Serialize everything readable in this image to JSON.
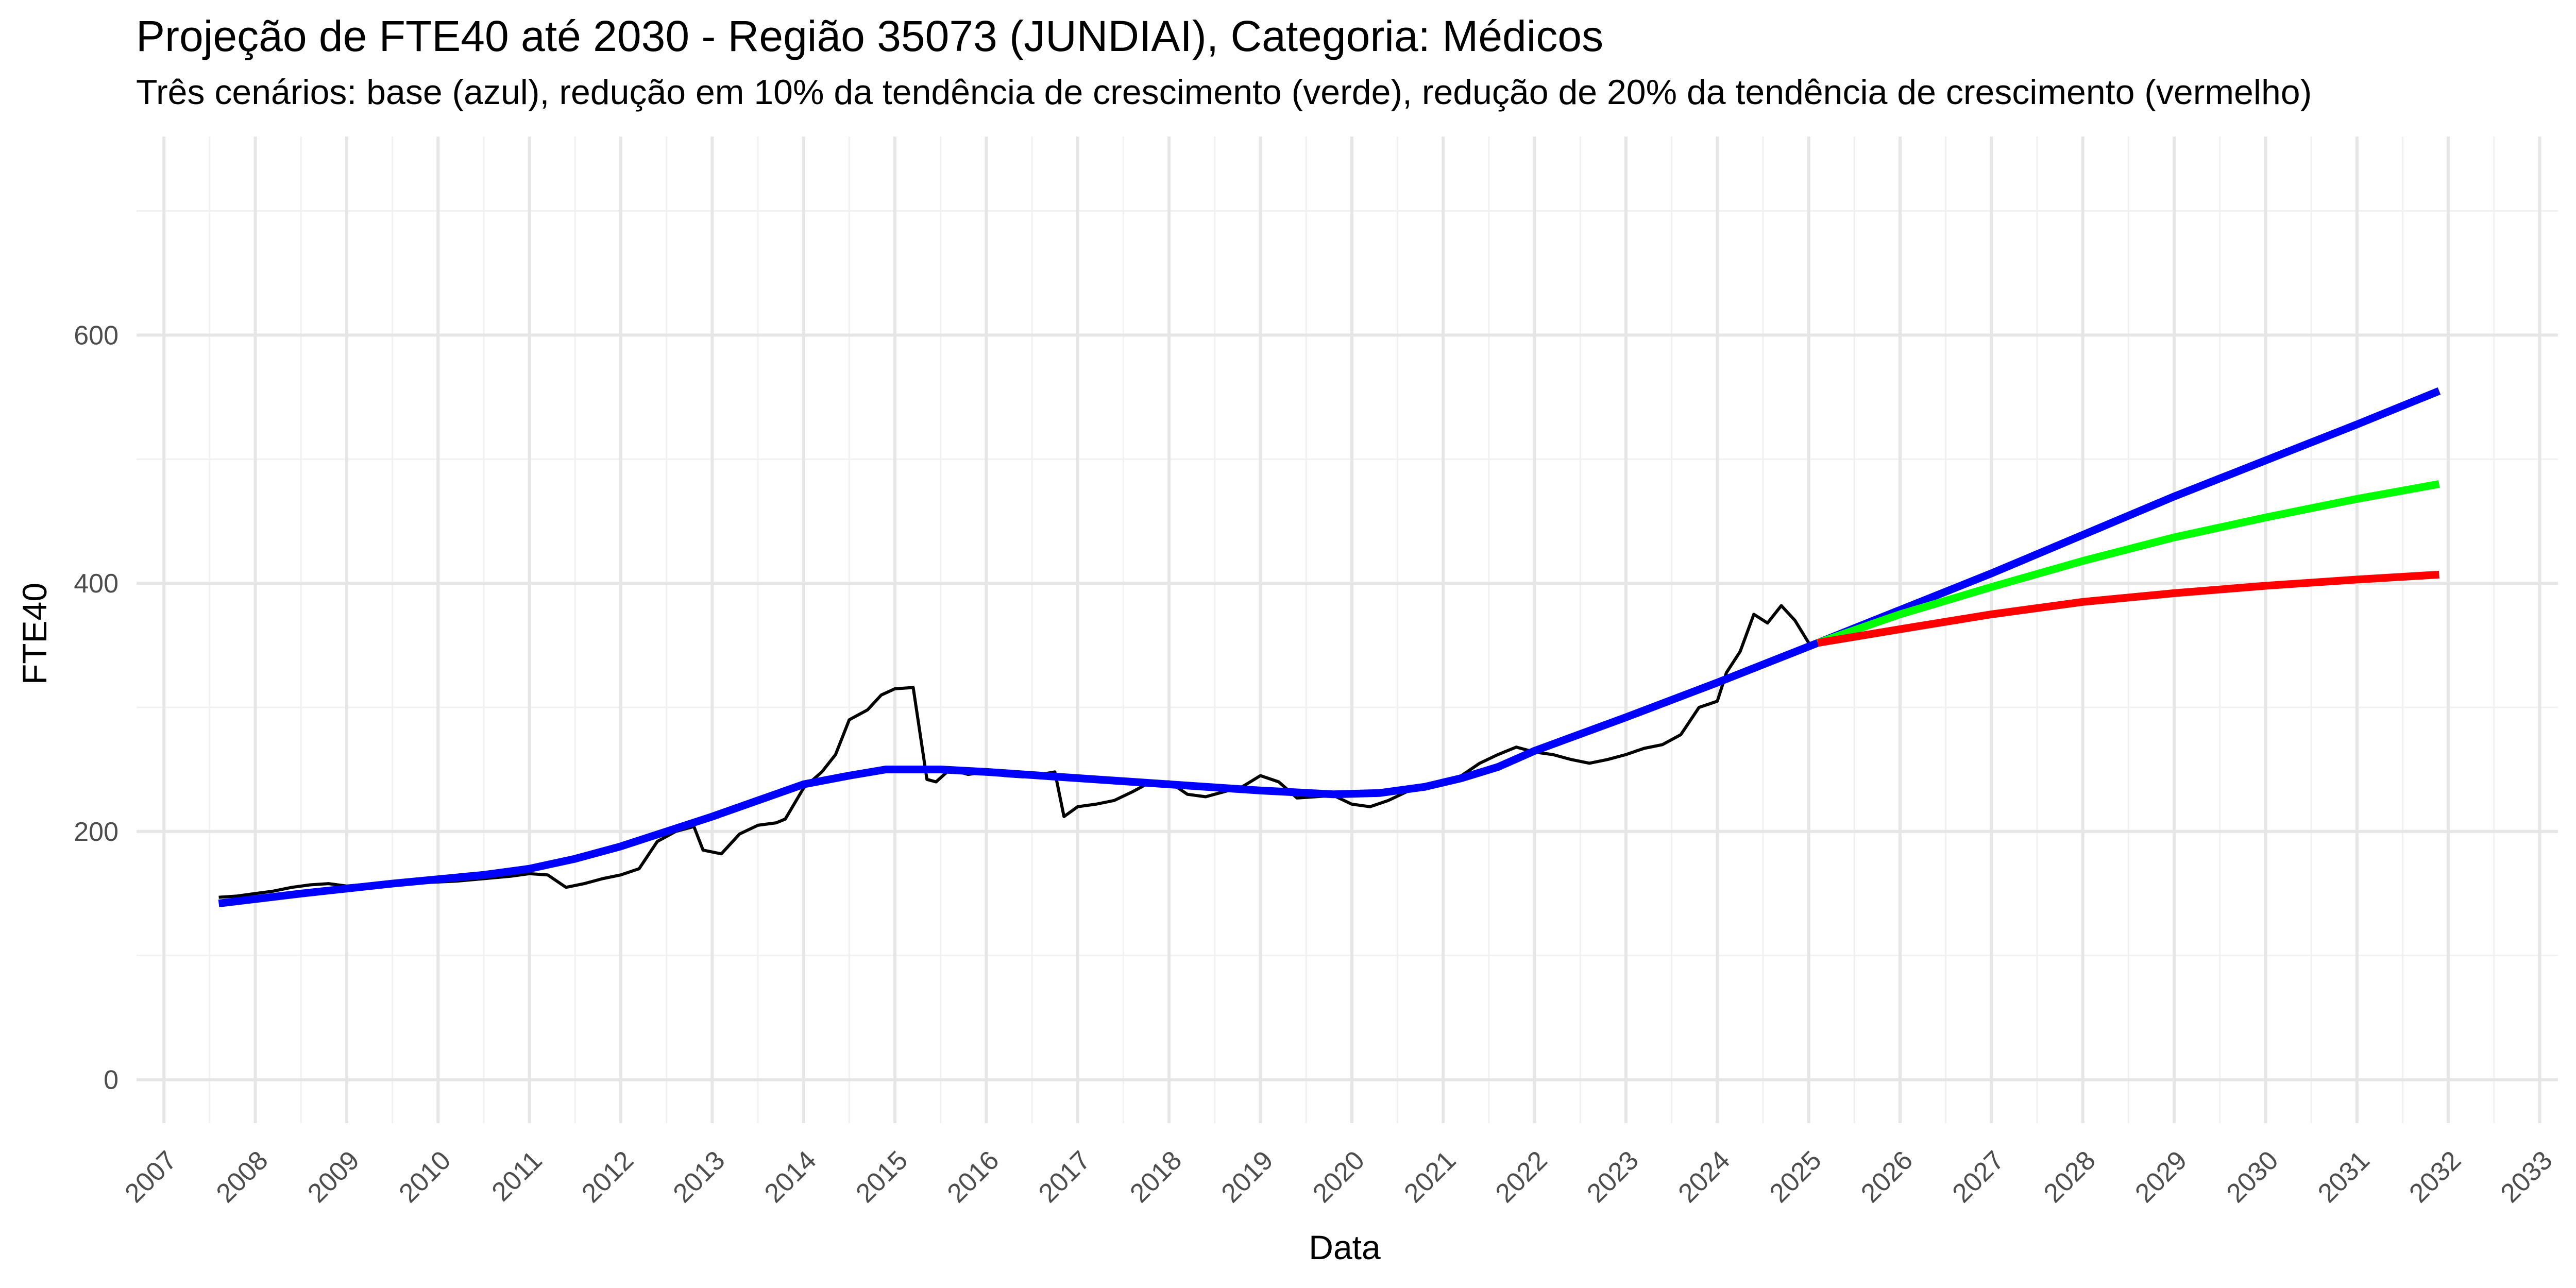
{
  "chart_data": {
    "type": "line",
    "title": "Projeção de FTE40 até 2030 - Região 35073 (JUNDIAI), Categoria: Médicos",
    "subtitle": "Três cenários: base (azul), redução em 10% da tendência de crescimento (verde), redução de 20% da tendência de crescimento (vermelho)",
    "xlabel": "Data",
    "ylabel": "FTE40",
    "xlim": [
      2006.7,
      2033.2
    ],
    "ylim": [
      -35,
      760
    ],
    "x_ticks": [
      "2007",
      "2008",
      "2009",
      "2010",
      "2011",
      "2012",
      "2013",
      "2014",
      "2015",
      "2016",
      "2017",
      "2018",
      "2019",
      "2020",
      "2021",
      "2022",
      "2023",
      "2024",
      "2025",
      "2026",
      "2027",
      "2028",
      "2029",
      "2030",
      "2031",
      "2032",
      "2033"
    ],
    "y_ticks": [
      0,
      200,
      400,
      600
    ],
    "grid": true,
    "legend": "none",
    "series": [
      {
        "color": "#000000",
        "width": 6,
        "x": [
          2007.6,
          2007.8,
          2008.0,
          2008.2,
          2008.4,
          2008.6,
          2008.8,
          2009.0,
          2009.3,
          2009.6,
          2009.9,
          2010.2,
          2010.5,
          2010.8,
          2011.0,
          2011.2,
          2011.4,
          2011.6,
          2011.8,
          2012.0,
          2012.2,
          2012.4,
          2012.6,
          2012.8,
          2012.9,
          2013.1,
          2013.3,
          2013.5,
          2013.7,
          2013.8,
          2014.0,
          2014.2,
          2014.35,
          2014.5,
          2014.7,
          2014.85,
          2015.0,
          2015.2,
          2015.35,
          2015.45,
          2015.6,
          2015.8,
          2016.0,
          2016.2,
          2016.4,
          2016.6,
          2016.75,
          2016.85,
          2017.0,
          2017.2,
          2017.4,
          2017.6,
          2017.8,
          2018.0,
          2018.2,
          2018.4,
          2018.6,
          2018.8,
          2019.0,
          2019.2,
          2019.4,
          2019.6,
          2019.8,
          2020.0,
          2020.2,
          2020.4,
          2020.6,
          2020.8,
          2021.0,
          2021.2,
          2021.4,
          2021.6,
          2021.8,
          2022.0,
          2022.2,
          2022.4,
          2022.6,
          2022.8,
          2023.0,
          2023.2,
          2023.4,
          2023.6,
          2023.8,
          2024.0,
          2024.1,
          2024.25,
          2024.4,
          2024.55,
          2024.7,
          2024.85,
          2025.0
        ],
        "y": [
          147,
          148,
          150,
          152,
          155,
          157,
          158,
          156,
          158,
          160,
          159,
          160,
          162,
          164,
          166,
          165,
          155,
          158,
          162,
          165,
          170,
          192,
          200,
          204,
          185,
          182,
          198,
          205,
          207,
          210,
          235,
          248,
          262,
          290,
          298,
          310,
          315,
          316,
          242,
          240,
          250,
          246,
          248,
          245,
          244,
          246,
          248,
          212,
          220,
          222,
          225,
          232,
          240,
          240,
          230,
          228,
          232,
          236,
          245,
          240,
          227,
          228,
          229,
          222,
          220,
          225,
          232,
          237,
          240,
          245,
          255,
          262,
          268,
          264,
          262,
          258,
          255,
          258,
          262,
          267,
          270,
          278,
          300,
          305,
          328,
          345,
          375,
          368,
          382,
          370,
          352
        ]
      },
      {
        "color": "#0000ff",
        "width": 15,
        "x": [
          2007.6,
          2008.5,
          2009.5,
          2010.5,
          2011.0,
          2011.5,
          2012.0,
          2012.5,
          2013.0,
          2013.5,
          2014.0,
          2014.5,
          2014.9,
          2015.5,
          2016.0,
          2017.0,
          2018.0,
          2019.0,
          2019.8,
          2020.3,
          2020.8,
          2021.2,
          2021.6,
          2022.0,
          2023.0,
          2024.0,
          2025.1
        ],
        "y": [
          142,
          150,
          158,
          165,
          170,
          178,
          188,
          200,
          212,
          225,
          238,
          245,
          250,
          250,
          248,
          243,
          238,
          233,
          230,
          231,
          236,
          243,
          252,
          265,
          292,
          320,
          352
        ]
      },
      {
        "color": "#0000ff",
        "width": 15,
        "x": [
          2025.1,
          2027.0,
          2029.0,
          2031.0,
          2031.9
        ],
        "y": [
          352,
          408,
          470,
          528,
          555
        ]
      },
      {
        "color": "#00ff00",
        "width": 15,
        "x": [
          2025.1,
          2026.0,
          2027.0,
          2028.0,
          2029.0,
          2030.0,
          2031.0,
          2031.9
        ],
        "y": [
          352,
          375,
          397,
          418,
          437,
          453,
          468,
          480
        ]
      },
      {
        "color": "#ff0000",
        "width": 15,
        "x": [
          2025.1,
          2026.0,
          2027.0,
          2028.0,
          2029.0,
          2030.0,
          2031.0,
          2031.9
        ],
        "y": [
          352,
          363,
          375,
          385,
          392,
          398,
          403,
          407
        ]
      }
    ]
  }
}
